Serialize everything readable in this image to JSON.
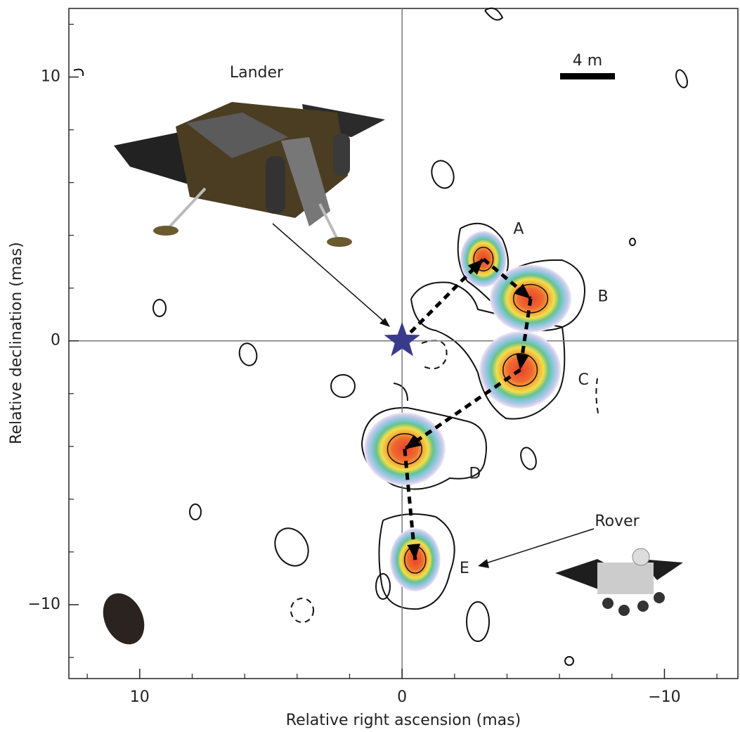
{
  "chart_data": {
    "type": "scatter",
    "x_label": "Relative right ascension (mas)",
    "y_label": "Relative declination (mas)",
    "point_labels": [
      "A",
      "B",
      "C",
      "D",
      "E"
    ],
    "x": [
      -3.1,
      -4.9,
      -4.5,
      -0.1,
      -0.5
    ],
    "values": [
      3.1,
      1.6,
      -1.1,
      -4.1,
      -8.3
    ],
    "origin_marker_color": "#3a3a8c",
    "xlim": [
      12.7,
      -12.8
    ],
    "ylim": [
      -12.8,
      12.6
    ],
    "xticks": [
      10,
      0,
      {
        "value": -10,
        "label": "−10"
      }
    ],
    "yticks": [
      10,
      0,
      {
        "value": -10,
        "label": "−10"
      }
    ],
    "xminor": [
      12,
      8,
      6,
      4,
      2,
      -2,
      -4,
      -6,
      -8,
      -12
    ],
    "yminor": [
      12,
      8,
      6,
      4,
      2,
      -2,
      -4,
      -6,
      -8,
      -12
    ],
    "zero_lines": true,
    "annotations": {
      "lander": "Lander",
      "rover": "Rover",
      "scale": "4 m"
    }
  }
}
